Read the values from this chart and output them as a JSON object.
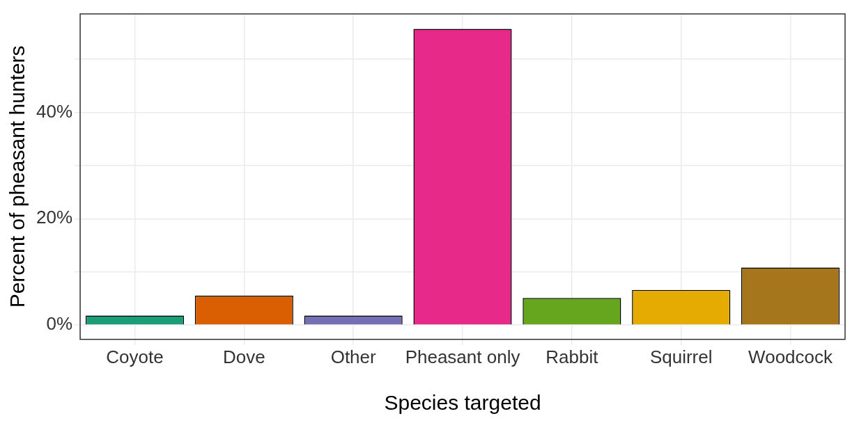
{
  "chart_data": {
    "type": "bar",
    "xlabel": "Species targeted",
    "ylabel": "Percent of pheasant hunters",
    "categories": [
      "Coyote",
      "Dove",
      "Other",
      "Pheasant only",
      "Rabbit",
      "Squirrel",
      "Woodcock"
    ],
    "values": [
      1.8,
      5.5,
      1.8,
      55.7,
      5.1,
      6.6,
      10.8
    ],
    "colors": [
      "#1b9e77",
      "#d95f02",
      "#7570b3",
      "#e7298a",
      "#66a61e",
      "#e6ab02",
      "#a6761d"
    ],
    "ylim": [
      -2.7,
      58.5
    ],
    "yticks": [
      {
        "value": 0,
        "label": "0%"
      },
      {
        "value": 10,
        "label": null
      },
      {
        "value": 20,
        "label": "20%"
      },
      {
        "value": 30,
        "label": null
      },
      {
        "value": 40,
        "label": "40%"
      },
      {
        "value": 50,
        "label": null
      }
    ],
    "grid": true,
    "legend": false
  }
}
